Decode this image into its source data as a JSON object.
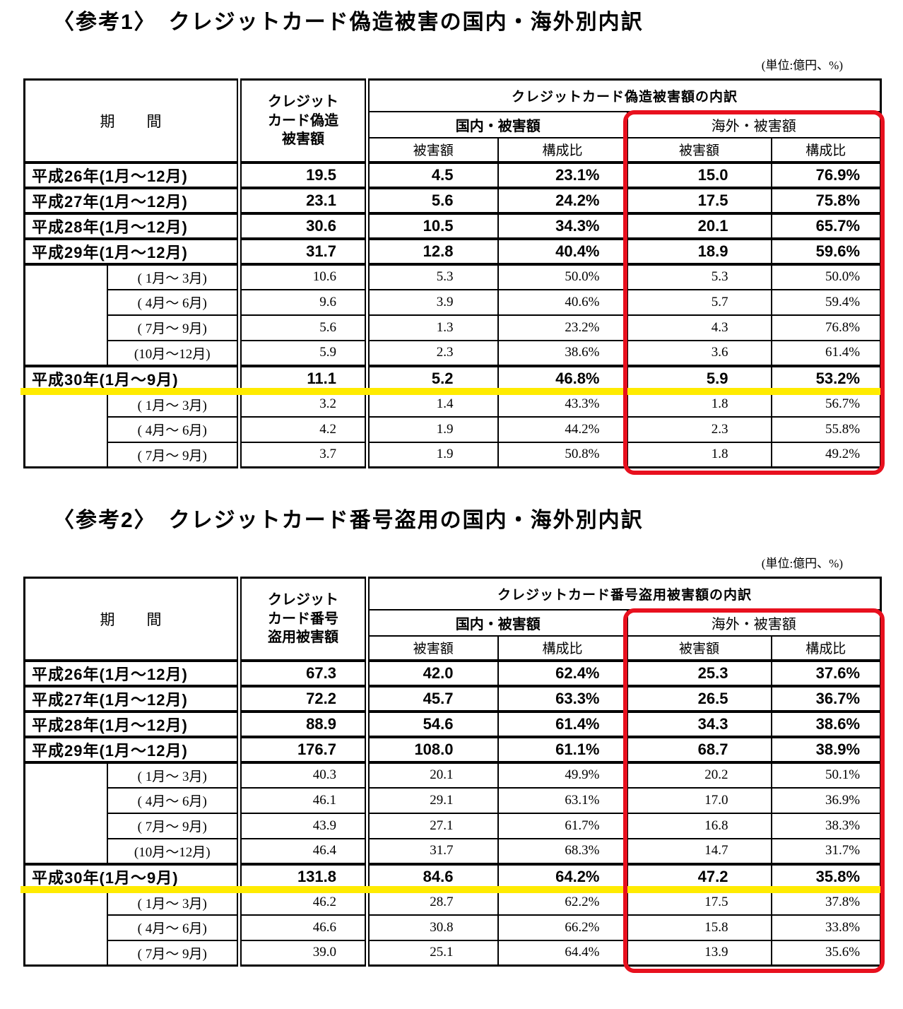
{
  "annotations": {
    "overseas_box_color": "#e8101e",
    "highlight_color": "#ffeb00"
  },
  "tables": [
    {
      "title": "〈参考1〉　クレジットカード偽造被害の国内・海外別内訳",
      "unit_note": "(単位:億円、%)",
      "header": {
        "period": "期　　間",
        "total": "クレジット\nカード偽造\n被害額",
        "breakdown": "クレジットカード偽造被害額の内訳",
        "domestic": "国内・被害額",
        "overseas": "海外・被害額",
        "amount": "被害額",
        "ratio": "構成比"
      },
      "rows": [
        {
          "type": "year",
          "label": "平成26年(1月〜12月)",
          "total": "19.5",
          "domestic": "4.5",
          "domestic_ratio": "23.1%",
          "overseas": "15.0",
          "overseas_ratio": "76.9%"
        },
        {
          "type": "year",
          "label": "平成27年(1月〜12月)",
          "total": "23.1",
          "domestic": "5.6",
          "domestic_ratio": "24.2%",
          "overseas": "17.5",
          "overseas_ratio": "75.8%"
        },
        {
          "type": "year",
          "label": "平成28年(1月〜12月)",
          "total": "30.6",
          "domestic": "10.5",
          "domestic_ratio": "34.3%",
          "overseas": "20.1",
          "overseas_ratio": "65.7%"
        },
        {
          "type": "year",
          "label": "平成29年(1月〜12月)",
          "total": "31.7",
          "domestic": "12.8",
          "domestic_ratio": "40.4%",
          "overseas": "18.9",
          "overseas_ratio": "59.6%"
        },
        {
          "type": "quarter",
          "label": "( 1月〜 3月)",
          "total": "10.6",
          "domestic": "5.3",
          "domestic_ratio": "50.0%",
          "overseas": "5.3",
          "overseas_ratio": "50.0%"
        },
        {
          "type": "quarter",
          "label": "( 4月〜 6月)",
          "total": "9.6",
          "domestic": "3.9",
          "domestic_ratio": "40.6%",
          "overseas": "5.7",
          "overseas_ratio": "59.4%"
        },
        {
          "type": "quarter",
          "label": "( 7月〜 9月)",
          "total": "5.6",
          "domestic": "1.3",
          "domestic_ratio": "23.2%",
          "overseas": "4.3",
          "overseas_ratio": "76.8%"
        },
        {
          "type": "quarter",
          "label": "(10月〜12月)",
          "total": "5.9",
          "domestic": "2.3",
          "domestic_ratio": "38.6%",
          "overseas": "3.6",
          "overseas_ratio": "61.4%"
        },
        {
          "type": "year",
          "highlight": true,
          "label": "平成30年(1月〜9月)",
          "total": "11.1",
          "domestic": "5.2",
          "domestic_ratio": "46.8%",
          "overseas": "5.9",
          "overseas_ratio": "53.2%"
        },
        {
          "type": "quarter",
          "label": "( 1月〜 3月)",
          "total": "3.2",
          "domestic": "1.4",
          "domestic_ratio": "43.3%",
          "overseas": "1.8",
          "overseas_ratio": "56.7%"
        },
        {
          "type": "quarter",
          "label": "( 4月〜 6月)",
          "total": "4.2",
          "domestic": "1.9",
          "domestic_ratio": "44.2%",
          "overseas": "2.3",
          "overseas_ratio": "55.8%"
        },
        {
          "type": "quarter",
          "label": "( 7月〜 9月)",
          "total": "3.7",
          "domestic": "1.9",
          "domestic_ratio": "50.8%",
          "overseas": "1.8",
          "overseas_ratio": "49.2%"
        }
      ]
    },
    {
      "title": "〈参考2〉　クレジットカード番号盗用の国内・海外別内訳",
      "unit_note": "(単位:億円、%)",
      "header": {
        "period": "期　　間",
        "total": "クレジット\nカード番号\n盗用被害額",
        "breakdown": "クレジットカード番号盗用被害額の内訳",
        "domestic": "国内・被害額",
        "overseas": "海外・被害額",
        "amount": "被害額",
        "ratio": "構成比"
      },
      "rows": [
        {
          "type": "year",
          "label": "平成26年(1月〜12月)",
          "total": "67.3",
          "domestic": "42.0",
          "domestic_ratio": "62.4%",
          "overseas": "25.3",
          "overseas_ratio": "37.6%"
        },
        {
          "type": "year",
          "label": "平成27年(1月〜12月)",
          "total": "72.2",
          "domestic": "45.7",
          "domestic_ratio": "63.3%",
          "overseas": "26.5",
          "overseas_ratio": "36.7%"
        },
        {
          "type": "year",
          "label": "平成28年(1月〜12月)",
          "total": "88.9",
          "domestic": "54.6",
          "domestic_ratio": "61.4%",
          "overseas": "34.3",
          "overseas_ratio": "38.6%"
        },
        {
          "type": "year",
          "label": "平成29年(1月〜12月)",
          "total": "176.7",
          "domestic": "108.0",
          "domestic_ratio": "61.1%",
          "overseas": "68.7",
          "overseas_ratio": "38.9%"
        },
        {
          "type": "quarter",
          "label": "( 1月〜 3月)",
          "total": "40.3",
          "domestic": "20.1",
          "domestic_ratio": "49.9%",
          "overseas": "20.2",
          "overseas_ratio": "50.1%"
        },
        {
          "type": "quarter",
          "label": "( 4月〜 6月)",
          "total": "46.1",
          "domestic": "29.1",
          "domestic_ratio": "63.1%",
          "overseas": "17.0",
          "overseas_ratio": "36.9%"
        },
        {
          "type": "quarter",
          "label": "( 7月〜 9月)",
          "total": "43.9",
          "domestic": "27.1",
          "domestic_ratio": "61.7%",
          "overseas": "16.8",
          "overseas_ratio": "38.3%"
        },
        {
          "type": "quarter",
          "label": "(10月〜12月)",
          "total": "46.4",
          "domestic": "31.7",
          "domestic_ratio": "68.3%",
          "overseas": "14.7",
          "overseas_ratio": "31.7%"
        },
        {
          "type": "year",
          "highlight": true,
          "label": "平成30年(1月〜9月)",
          "total": "131.8",
          "domestic": "84.6",
          "domestic_ratio": "64.2%",
          "overseas": "47.2",
          "overseas_ratio": "35.8%"
        },
        {
          "type": "quarter",
          "label": "( 1月〜 3月)",
          "total": "46.2",
          "domestic": "28.7",
          "domestic_ratio": "62.2%",
          "overseas": "17.5",
          "overseas_ratio": "37.8%"
        },
        {
          "type": "quarter",
          "label": "( 4月〜 6月)",
          "total": "46.6",
          "domestic": "30.8",
          "domestic_ratio": "66.2%",
          "overseas": "15.8",
          "overseas_ratio": "33.8%"
        },
        {
          "type": "quarter",
          "label": "( 7月〜 9月)",
          "total": "39.0",
          "domestic": "25.1",
          "domestic_ratio": "64.4%",
          "overseas": "13.9",
          "overseas_ratio": "35.6%"
        }
      ]
    }
  ]
}
